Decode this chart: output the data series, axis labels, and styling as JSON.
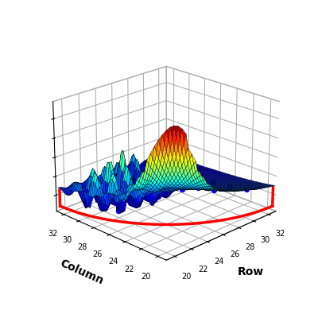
{
  "row_range": [
    19,
    33
  ],
  "col_range": [
    19,
    33
  ],
  "xlabel": "Row",
  "ylabel": "Column",
  "row_ticks": [
    20,
    22,
    24,
    26,
    28,
    30,
    32
  ],
  "col_ticks": [
    20,
    22,
    24,
    26,
    28,
    30,
    32
  ],
  "surface_cmap": "jet",
  "data_point_color": "#0000ff",
  "data_point_size": 18,
  "quarter_circle_color": "red",
  "quarter_circle_linewidth": 2.5,
  "elev": 22,
  "azim": -135,
  "fig_width": 4.0,
  "fig_height": 4.0,
  "dpi": 100
}
